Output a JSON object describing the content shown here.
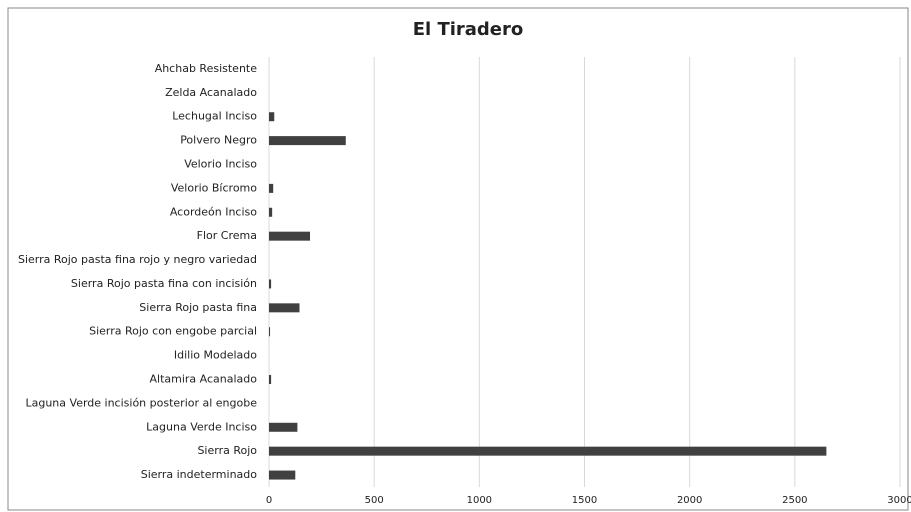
{
  "chart_data": {
    "type": "hbar",
    "title": "El Tiradero",
    "categories": [
      "Ahchab Resistente",
      "Zelda Acanalado",
      "Lechugal Inciso",
      "Polvero Negro",
      "Velorio Inciso",
      "Velorio Bícromo",
      "Acordeón Inciso",
      "Flor Crema",
      "Sierra Rojo pasta fina rojo y negro variedad",
      "Sierra Rojo pasta fina con incisión",
      "Sierra Rojo pasta fina",
      "Sierra Rojo con engobe parcial",
      "Idilio Modelado",
      "Altamira Acanalado",
      "Laguna Verde incisión posterior al engobe",
      "Laguna Verde Inciso",
      "Sierra Rojo",
      "Sierra indeterminado"
    ],
    "values": [
      0,
      0,
      25,
      365,
      0,
      20,
      15,
      195,
      0,
      10,
      145,
      5,
      0,
      10,
      0,
      135,
      2650,
      125
    ],
    "color": "#404040",
    "xlim": [
      0,
      3000
    ],
    "xticks": [
      0,
      500,
      1000,
      1500,
      2000,
      2500,
      3000
    ],
    "grid": true
  }
}
